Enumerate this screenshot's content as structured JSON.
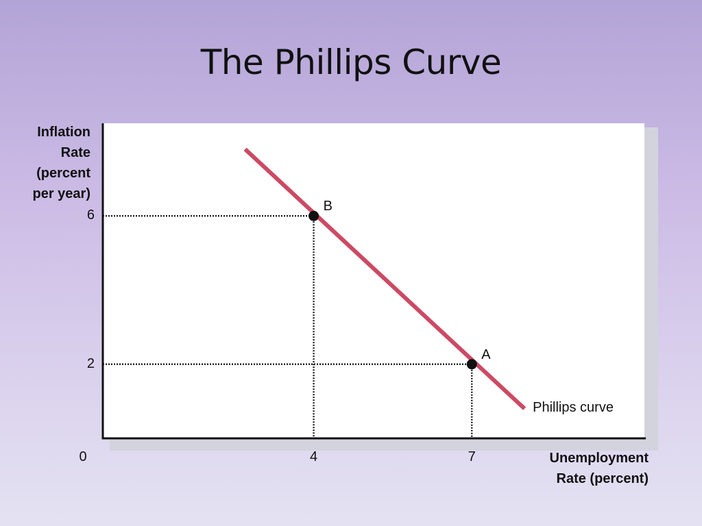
{
  "slide": {
    "title": "The Phillips Curve"
  },
  "chart_data": {
    "type": "line",
    "title": "The Phillips Curve",
    "xlabel": "Unemployment Rate (percent)",
    "ylabel": "Inflation Rate (percent per year)",
    "ylabel_lines": [
      "Inflation",
      "Rate",
      "(percent",
      "per year)"
    ],
    "xlabel_lines": [
      "Unemployment",
      "Rate (percent)"
    ],
    "xlim": [
      0,
      10.3
    ],
    "ylim": [
      0,
      8.5
    ],
    "origin_label": "0",
    "x_ticks": [
      "4",
      "7"
    ],
    "y_ticks": [
      "6",
      "2"
    ],
    "x_tick_values": [
      4,
      7
    ],
    "y_tick_values": [
      6,
      2
    ],
    "grid": false,
    "series": [
      {
        "name": "Phillips curve",
        "color": "#cc4a63",
        "points": [
          [
            2.7,
            7.8
          ],
          [
            8.0,
            0.8
          ]
        ]
      }
    ],
    "points": [
      {
        "label": "B",
        "x": 4,
        "y": 6
      },
      {
        "label": "A",
        "x": 7,
        "y": 2
      }
    ],
    "guide_color": "#222222",
    "curve_label": "Phillips curve"
  }
}
